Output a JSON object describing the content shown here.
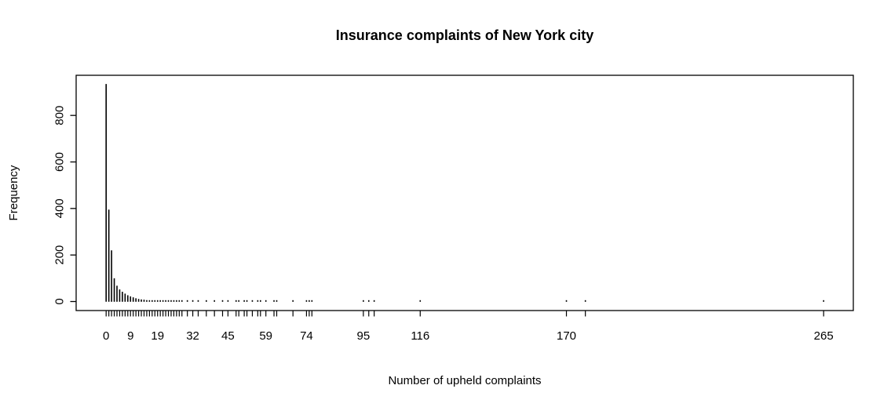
{
  "colors": {
    "foreground": "#000000",
    "background": "#ffffff"
  },
  "chart_data": {
    "type": "bar",
    "subtype": "frequency-spike-plot",
    "title": "Insurance complaints of New York city",
    "xlabel": "Number of upheld complaints",
    "ylabel": "Frequency",
    "grid": false,
    "legend": "none",
    "xlim": [
      -11.4,
      276.4
    ],
    "ylim": [
      -37.4,
      972.4
    ],
    "y_ticks": [
      0,
      200,
      400,
      600,
      800
    ],
    "x_labeled_ticks": [
      0,
      9,
      19,
      32,
      45,
      59,
      74,
      95,
      116,
      170,
      265
    ],
    "x_rug": "tick at every distinct data value below axis",
    "points": [
      [
        0,
        935
      ],
      [
        1,
        395
      ],
      [
        2,
        220
      ],
      [
        3,
        100
      ],
      [
        4,
        68
      ],
      [
        5,
        52
      ],
      [
        6,
        42
      ],
      [
        7,
        34
      ],
      [
        8,
        27
      ],
      [
        9,
        22
      ],
      [
        10,
        18
      ],
      [
        11,
        14
      ],
      [
        12,
        11
      ],
      [
        13,
        9
      ],
      [
        14,
        8
      ],
      [
        15,
        6
      ],
      [
        16,
        5
      ],
      [
        17,
        5
      ],
      [
        18,
        4
      ],
      [
        19,
        3
      ],
      [
        20,
        3
      ],
      [
        21,
        3
      ],
      [
        22,
        2
      ],
      [
        23,
        2
      ],
      [
        24,
        2
      ],
      [
        25,
        2
      ],
      [
        26,
        2
      ],
      [
        27,
        2
      ],
      [
        28,
        2
      ],
      [
        30,
        1
      ],
      [
        32,
        1
      ],
      [
        34,
        1
      ],
      [
        37,
        1
      ],
      [
        40,
        1
      ],
      [
        43,
        1
      ],
      [
        45,
        1
      ],
      [
        48,
        1
      ],
      [
        49,
        1
      ],
      [
        51,
        1
      ],
      [
        52,
        1
      ],
      [
        54,
        1
      ],
      [
        56,
        1
      ],
      [
        57,
        1
      ],
      [
        59,
        1
      ],
      [
        62,
        1
      ],
      [
        63,
        1
      ],
      [
        69,
        1
      ],
      [
        74,
        1
      ],
      [
        75,
        1
      ],
      [
        76,
        1
      ],
      [
        95,
        1
      ],
      [
        97,
        1
      ],
      [
        99,
        1
      ],
      [
        116,
        1
      ],
      [
        170,
        1
      ],
      [
        177,
        1
      ],
      [
        265,
        1
      ]
    ]
  }
}
